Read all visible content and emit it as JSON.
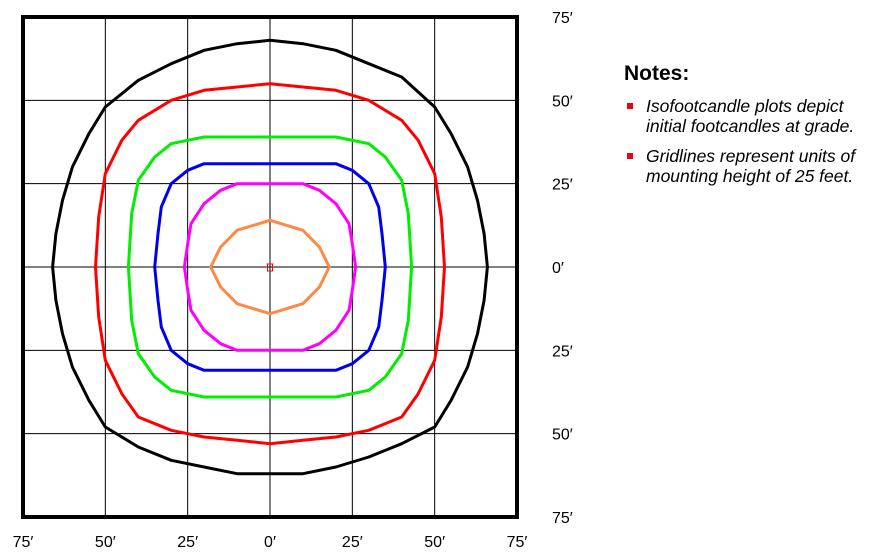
{
  "chart_data": {
    "type": "line",
    "title": "",
    "xlabel": "",
    "ylabel": "",
    "units": "feet",
    "xlim": [
      -75,
      75
    ],
    "ylim": [
      -75,
      75
    ],
    "grid": true,
    "x_ticks": [
      -75,
      -50,
      -25,
      0,
      25,
      50,
      75
    ],
    "y_ticks": [
      75,
      50,
      25,
      0,
      -25,
      -50,
      -75
    ],
    "x_tick_labels": [
      "75′",
      "50′",
      "25′",
      "0′",
      "25′",
      "50′",
      "75′"
    ],
    "y_tick_labels": [
      "75′",
      "50′",
      "25′",
      "0′",
      "25′",
      "50′",
      "75′"
    ],
    "luminaire": {
      "x": 0,
      "y": 0
    },
    "series": [
      {
        "color": "#000000",
        "points": [
          [
            0,
            68
          ],
          [
            10,
            67
          ],
          [
            20,
            65
          ],
          [
            30,
            61
          ],
          [
            40,
            57
          ],
          [
            50,
            48
          ],
          [
            55,
            40
          ],
          [
            60,
            30
          ],
          [
            63,
            20
          ],
          [
            65,
            10
          ],
          [
            66,
            0
          ],
          [
            65,
            -10
          ],
          [
            63,
            -20
          ],
          [
            60,
            -30
          ],
          [
            55,
            -40
          ],
          [
            50,
            -48
          ],
          [
            40,
            -53
          ],
          [
            30,
            -57
          ],
          [
            20,
            -60
          ],
          [
            10,
            -62
          ],
          [
            0,
            -62
          ],
          [
            -10,
            -62
          ],
          [
            -20,
            -60
          ],
          [
            -30,
            -58
          ],
          [
            -40,
            -54
          ],
          [
            -50,
            -48
          ],
          [
            -55,
            -40
          ],
          [
            -60,
            -30
          ],
          [
            -63,
            -20
          ],
          [
            -65,
            -10
          ],
          [
            -66,
            0
          ],
          [
            -65,
            10
          ],
          [
            -63,
            20
          ],
          [
            -60,
            30
          ],
          [
            -55,
            40
          ],
          [
            -50,
            48
          ],
          [
            -40,
            56
          ],
          [
            -30,
            61
          ],
          [
            -20,
            65
          ],
          [
            -10,
            67
          ]
        ]
      },
      {
        "color": "#ff0000",
        "points": [
          [
            0,
            55
          ],
          [
            10,
            54
          ],
          [
            20,
            53
          ],
          [
            30,
            50
          ],
          [
            40,
            44
          ],
          [
            45,
            38
          ],
          [
            50,
            28
          ],
          [
            52,
            15
          ],
          [
            53,
            0
          ],
          [
            52,
            -15
          ],
          [
            50,
            -28
          ],
          [
            45,
            -38
          ],
          [
            40,
            -45
          ],
          [
            30,
            -49
          ],
          [
            20,
            -51
          ],
          [
            10,
            -52
          ],
          [
            0,
            -53
          ],
          [
            -10,
            -52
          ],
          [
            -20,
            -51
          ],
          [
            -30,
            -49
          ],
          [
            -40,
            -45
          ],
          [
            -45,
            -38
          ],
          [
            -50,
            -28
          ],
          [
            -52,
            -15
          ],
          [
            -53,
            0
          ],
          [
            -52,
            15
          ],
          [
            -50,
            28
          ],
          [
            -45,
            38
          ],
          [
            -40,
            44
          ],
          [
            -30,
            50
          ],
          [
            -20,
            53
          ],
          [
            -10,
            54
          ]
        ]
      },
      {
        "color": "#00ee00",
        "points": [
          [
            0,
            39
          ],
          [
            10,
            39
          ],
          [
            20,
            39
          ],
          [
            30,
            37
          ],
          [
            35,
            33
          ],
          [
            40,
            26
          ],
          [
            42,
            16
          ],
          [
            43,
            0
          ],
          [
            42,
            -16
          ],
          [
            40,
            -26
          ],
          [
            35,
            -33
          ],
          [
            30,
            -37
          ],
          [
            20,
            -39
          ],
          [
            10,
            -39
          ],
          [
            0,
            -39
          ],
          [
            -10,
            -39
          ],
          [
            -20,
            -39
          ],
          [
            -30,
            -37
          ],
          [
            -35,
            -33
          ],
          [
            -40,
            -26
          ],
          [
            -42,
            -16
          ],
          [
            -43,
            0
          ],
          [
            -42,
            16
          ],
          [
            -40,
            26
          ],
          [
            -35,
            33
          ],
          [
            -30,
            37
          ],
          [
            -20,
            39
          ],
          [
            -10,
            39
          ]
        ]
      },
      {
        "color": "#0000ee",
        "points": [
          [
            0,
            31
          ],
          [
            10,
            31
          ],
          [
            20,
            31
          ],
          [
            25,
            29
          ],
          [
            30,
            25
          ],
          [
            33,
            18
          ],
          [
            34,
            10
          ],
          [
            35,
            0
          ],
          [
            34,
            -10
          ],
          [
            33,
            -18
          ],
          [
            30,
            -25
          ],
          [
            25,
            -29
          ],
          [
            20,
            -31
          ],
          [
            10,
            -31
          ],
          [
            0,
            -31
          ],
          [
            -10,
            -31
          ],
          [
            -20,
            -31
          ],
          [
            -25,
            -29
          ],
          [
            -30,
            -25
          ],
          [
            -33,
            -18
          ],
          [
            -34,
            -10
          ],
          [
            -35,
            0
          ],
          [
            -34,
            10
          ],
          [
            -33,
            18
          ],
          [
            -30,
            25
          ],
          [
            -25,
            29
          ],
          [
            -20,
            31
          ],
          [
            -10,
            31
          ]
        ]
      },
      {
        "color": "#ff00ff",
        "points": [
          [
            0,
            25
          ],
          [
            10,
            25
          ],
          [
            15,
            23
          ],
          [
            20,
            19
          ],
          [
            24,
            13
          ],
          [
            25,
            7
          ],
          [
            26,
            0
          ],
          [
            25,
            -7
          ],
          [
            24,
            -13
          ],
          [
            20,
            -19
          ],
          [
            15,
            -23
          ],
          [
            10,
            -25
          ],
          [
            0,
            -25
          ],
          [
            -10,
            -25
          ],
          [
            -15,
            -23
          ],
          [
            -20,
            -19
          ],
          [
            -24,
            -13
          ],
          [
            -25,
            -7
          ],
          [
            -26,
            0
          ],
          [
            -25,
            7
          ],
          [
            -24,
            13
          ],
          [
            -20,
            19
          ],
          [
            -15,
            23
          ],
          [
            -10,
            25
          ]
        ]
      },
      {
        "color": "#ff8844",
        "points": [
          [
            0,
            14
          ],
          [
            10,
            11
          ],
          [
            15,
            6
          ],
          [
            18,
            0
          ],
          [
            15,
            -6
          ],
          [
            10,
            -11
          ],
          [
            0,
            -14
          ],
          [
            -10,
            -11
          ],
          [
            -15,
            -6
          ],
          [
            -18,
            0
          ],
          [
            -15,
            6
          ],
          [
            -10,
            11
          ]
        ]
      }
    ]
  },
  "notes": {
    "title": "Notes:",
    "items": [
      "Isofootcandle plots depict initial footcandles at grade.",
      "Gridlines represent units of mounting height of 25 feet."
    ]
  }
}
